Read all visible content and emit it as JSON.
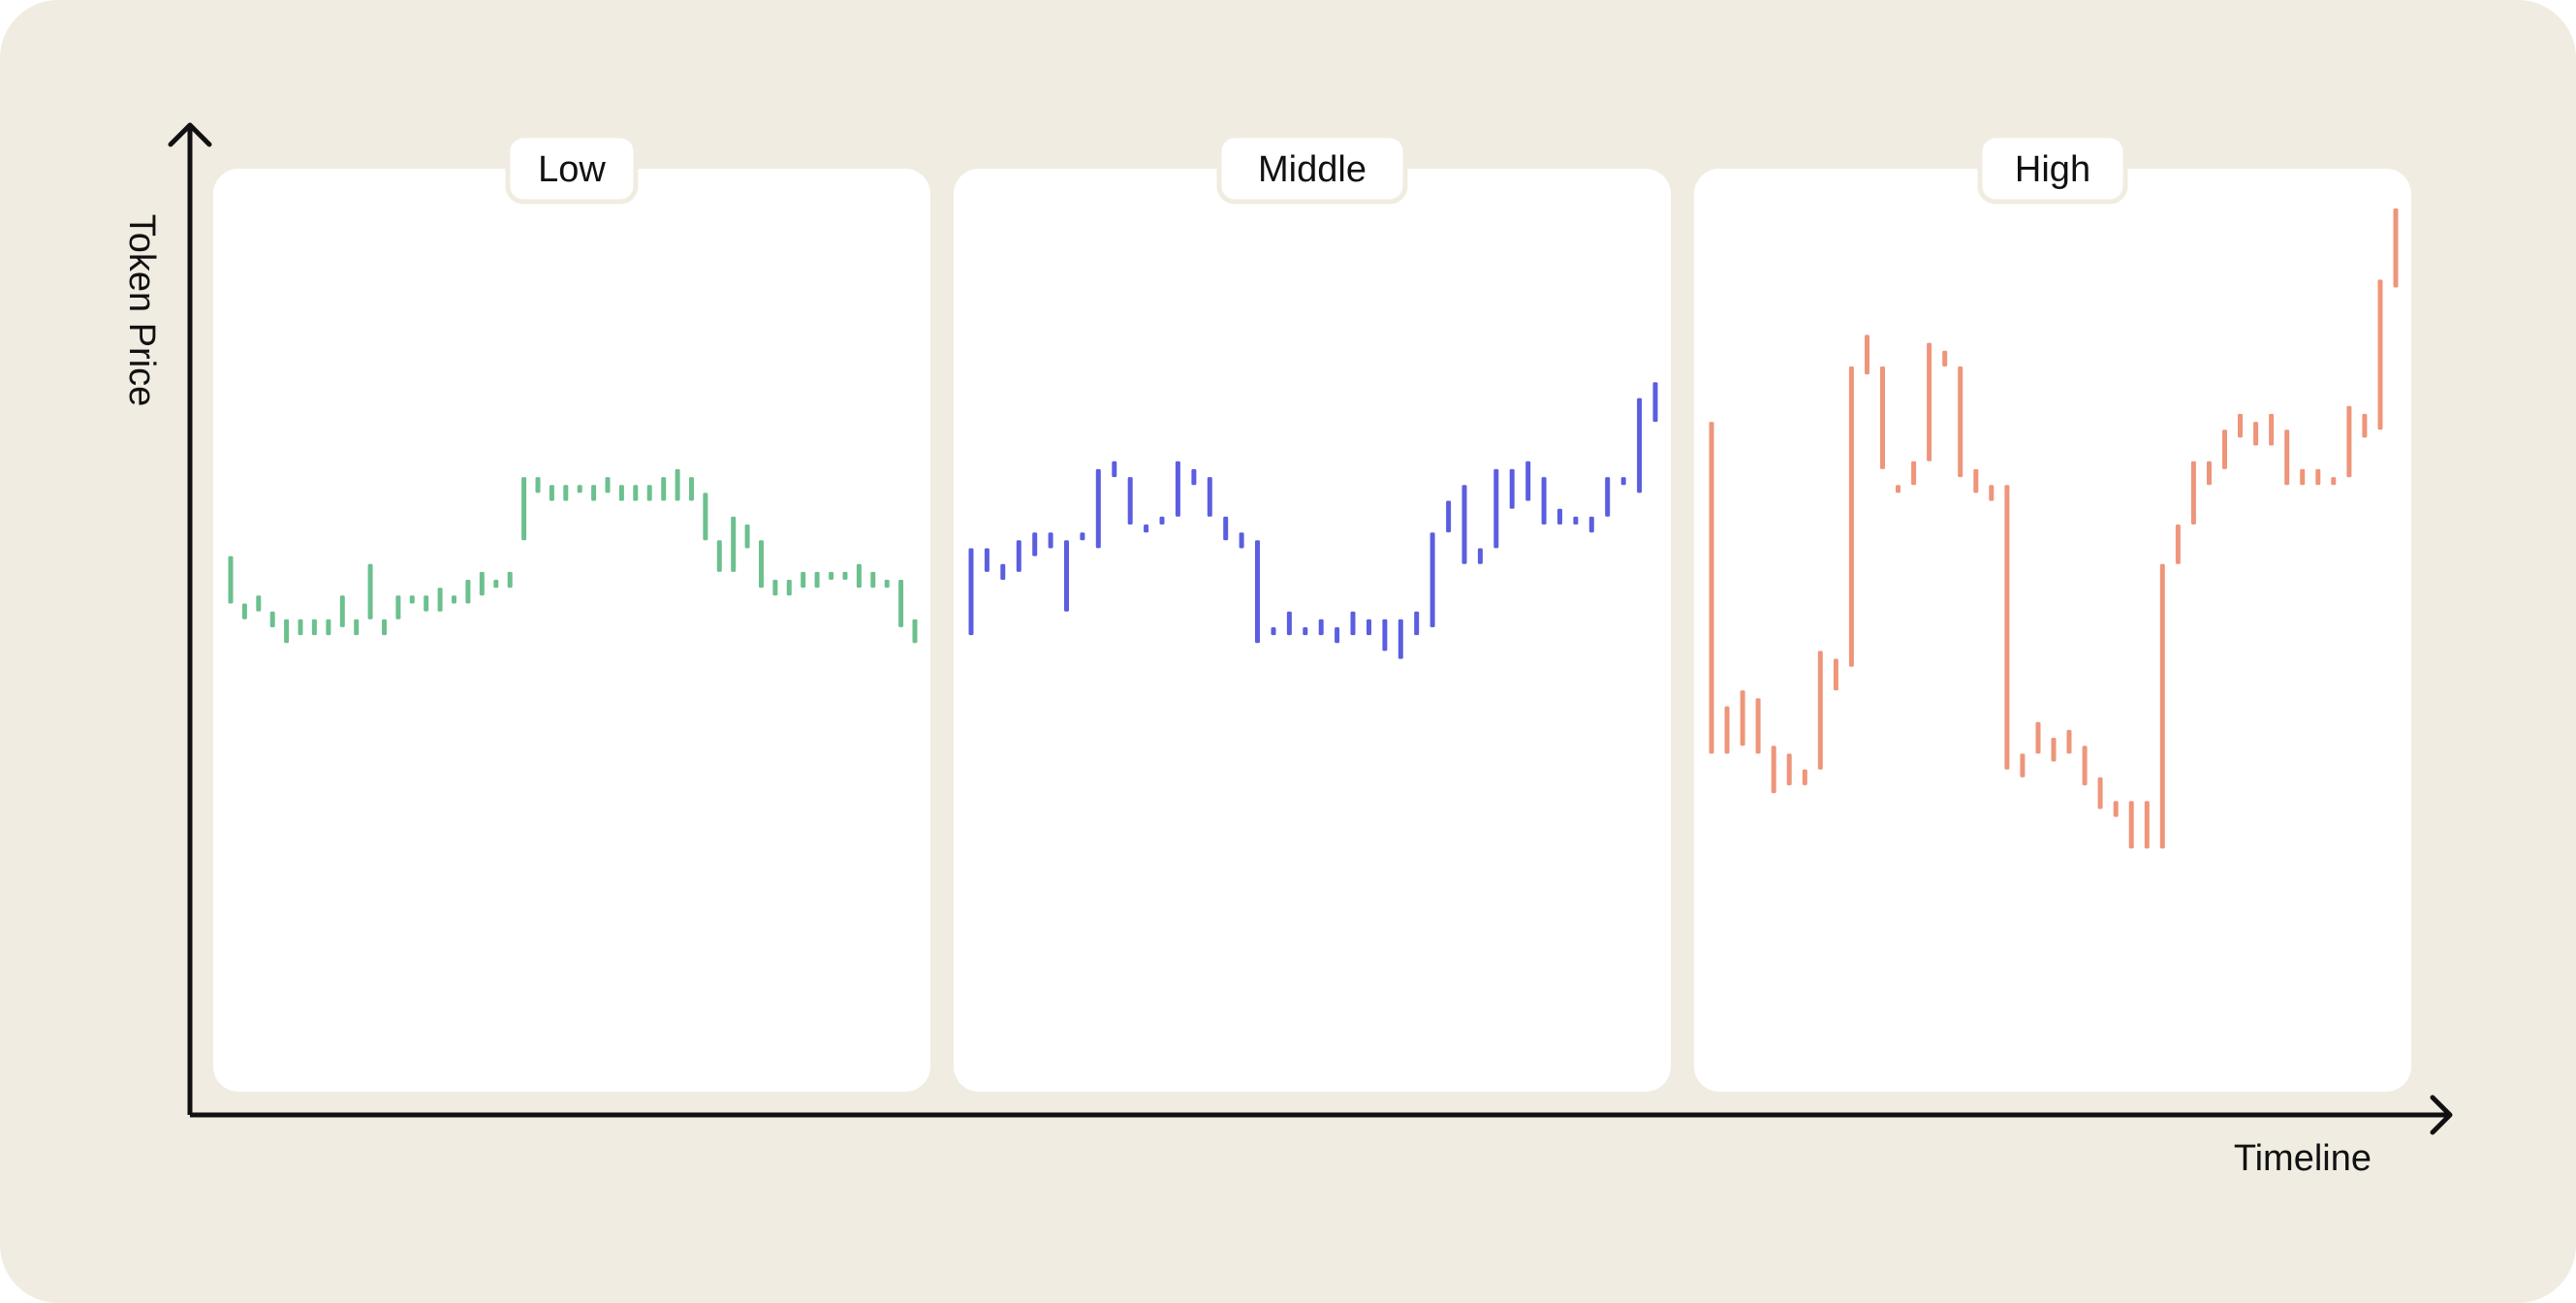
{
  "colors": {
    "background": "#f0ece1",
    "panel": "#ffffff",
    "axis": "#111111",
    "low": "#6cc08e",
    "middle": "#5b5ee0",
    "high": "#ee957a"
  },
  "chart_data": {
    "type": "bar",
    "subtype": "range-bars (high-low)",
    "title": "",
    "xlabel": "Timeline",
    "ylabel": "Token Price",
    "ylim": [
      0,
      100
    ],
    "grid": false,
    "legend": "none",
    "panels": [
      {
        "name": "Low",
        "color_key": "low",
        "bars": [
          [
            50,
            56
          ],
          [
            48,
            50
          ],
          [
            49,
            51
          ],
          [
            47,
            49
          ],
          [
            45,
            48
          ],
          [
            46,
            48
          ],
          [
            46,
            48
          ],
          [
            46,
            48
          ],
          [
            47,
            51
          ],
          [
            46,
            48
          ],
          [
            48,
            55
          ],
          [
            46,
            48
          ],
          [
            48,
            51
          ],
          [
            50,
            51
          ],
          [
            49,
            51
          ],
          [
            49,
            52
          ],
          [
            50,
            51
          ],
          [
            50,
            53
          ],
          [
            51,
            54
          ],
          [
            52,
            53
          ],
          [
            52,
            54
          ],
          [
            58,
            66
          ],
          [
            64,
            66
          ],
          [
            63,
            65
          ],
          [
            63,
            65
          ],
          [
            64,
            65
          ],
          [
            63,
            65
          ],
          [
            64,
            66
          ],
          [
            63,
            65
          ],
          [
            63,
            65
          ],
          [
            63,
            65
          ],
          [
            63,
            66
          ],
          [
            63,
            67
          ],
          [
            63,
            66
          ],
          [
            58,
            64
          ],
          [
            54,
            58
          ],
          [
            54,
            61
          ],
          [
            57,
            60
          ],
          [
            52,
            58
          ],
          [
            51,
            53
          ],
          [
            51,
            53
          ],
          [
            52,
            54
          ],
          [
            52,
            54
          ],
          [
            53,
            54
          ],
          [
            53,
            54
          ],
          [
            52,
            55
          ],
          [
            52,
            54
          ],
          [
            52,
            53
          ],
          [
            47,
            53
          ],
          [
            45,
            48
          ]
        ]
      },
      {
        "name": "Middle",
        "color_key": "middle",
        "bars": [
          [
            46,
            57
          ],
          [
            54,
            57
          ],
          [
            53,
            55
          ],
          [
            54,
            58
          ],
          [
            56,
            59
          ],
          [
            57,
            59
          ],
          [
            49,
            58
          ],
          [
            58,
            59
          ],
          [
            57,
            67
          ],
          [
            66,
            68
          ],
          [
            60,
            66
          ],
          [
            59,
            60
          ],
          [
            60,
            61
          ],
          [
            61,
            68
          ],
          [
            65,
            67
          ],
          [
            61,
            66
          ],
          [
            58,
            61
          ],
          [
            57,
            59
          ],
          [
            45,
            58
          ],
          [
            46,
            47
          ],
          [
            46,
            49
          ],
          [
            46,
            47
          ],
          [
            46,
            48
          ],
          [
            45,
            47
          ],
          [
            46,
            49
          ],
          [
            46,
            48
          ],
          [
            44,
            48
          ],
          [
            43,
            48
          ],
          [
            46,
            49
          ],
          [
            47,
            59
          ],
          [
            59,
            63
          ],
          [
            55,
            65
          ],
          [
            55,
            57
          ],
          [
            57,
            67
          ],
          [
            62,
            67
          ],
          [
            63,
            68
          ],
          [
            60,
            66
          ],
          [
            60,
            62
          ],
          [
            60,
            61
          ],
          [
            59,
            61
          ],
          [
            61,
            66
          ],
          [
            65,
            66
          ],
          [
            64,
            76
          ],
          [
            73,
            78
          ]
        ]
      },
      {
        "name": "High",
        "color_key": "high",
        "bars": [
          [
            31,
            73
          ],
          [
            31,
            37
          ],
          [
            32,
            39
          ],
          [
            31,
            38
          ],
          [
            26,
            32
          ],
          [
            27,
            31
          ],
          [
            27,
            29
          ],
          [
            29,
            44
          ],
          [
            39,
            43
          ],
          [
            42,
            80
          ],
          [
            79,
            84
          ],
          [
            67,
            80
          ],
          [
            64,
            65
          ],
          [
            65,
            68
          ],
          [
            68,
            83
          ],
          [
            80,
            82
          ],
          [
            66,
            80
          ],
          [
            64,
            67
          ],
          [
            63,
            65
          ],
          [
            29,
            65
          ],
          [
            28,
            31
          ],
          [
            31,
            35
          ],
          [
            30,
            33
          ],
          [
            31,
            34
          ],
          [
            27,
            32
          ],
          [
            24,
            28
          ],
          [
            23,
            25
          ],
          [
            19,
            25
          ],
          [
            19,
            25
          ],
          [
            19,
            55
          ],
          [
            55,
            60
          ],
          [
            60,
            68
          ],
          [
            65,
            68
          ],
          [
            67,
            72
          ],
          [
            71,
            74
          ],
          [
            70,
            73
          ],
          [
            70,
            74
          ],
          [
            65,
            72
          ],
          [
            65,
            67
          ],
          [
            65,
            67
          ],
          [
            65,
            66
          ],
          [
            66,
            75
          ],
          [
            71,
            74
          ],
          [
            72,
            91
          ],
          [
            90,
            100
          ]
        ]
      }
    ]
  }
}
